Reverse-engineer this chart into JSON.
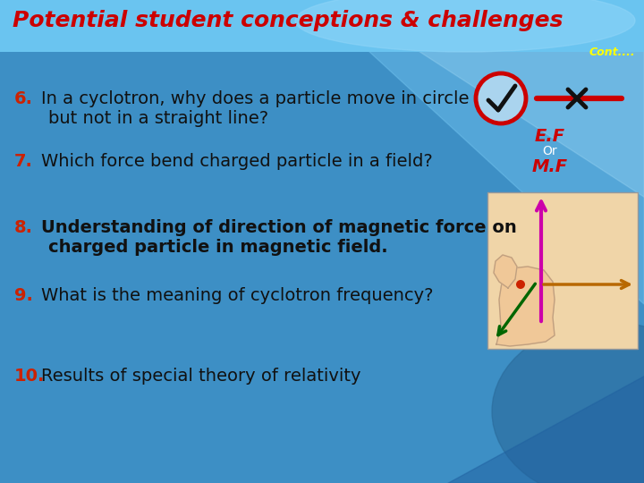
{
  "title": "Potential student conceptions & challenges",
  "cont_label": "Cont....",
  "title_color": "#cc0000",
  "cont_color": "#ffff00",
  "bg_color": "#3d8fc5",
  "header_color": "#6ac4f0",
  "items": [
    {
      "number": "6.",
      "num_color": "#cc2200",
      "text_line1": "In a cyclotron, why does a particle move in circle",
      "text_line2": "but not in a straight line?",
      "text_color": "#111111",
      "bold": false
    },
    {
      "number": "7.",
      "num_color": "#cc2200",
      "text_line1": "Which force bend charged particle in a field?",
      "text_line2": "",
      "text_color": "#111111",
      "bold": false
    },
    {
      "number": "8.",
      "num_color": "#cc2200",
      "text_line1": "Understanding of direction of magnetic force on",
      "text_line2": "charged particle in magnetic field.",
      "text_color": "#111111",
      "bold": true
    },
    {
      "number": "9.",
      "num_color": "#cc2200",
      "text_line1": "What is the meaning of cyclotron frequency?",
      "text_line2": "",
      "text_color": "#111111",
      "bold": false
    },
    {
      "number": "10.",
      "num_color": "#cc2200",
      "text_line1": "Results of special theory of relativity",
      "text_line2": "",
      "text_color": "#111111",
      "bold": false
    }
  ],
  "ef_label": "E.F",
  "or_label": "Or",
  "mf_label": "M.F",
  "ef_color": "#cc0000",
  "or_color": "#ffffff",
  "mf_color": "#cc0000",
  "check_circle_color": "#cc0000",
  "check_fill_color": "#aad4ee",
  "check_mark_color": "#111111",
  "x_mark_color": "#111111",
  "x_line_color": "#cc0000"
}
